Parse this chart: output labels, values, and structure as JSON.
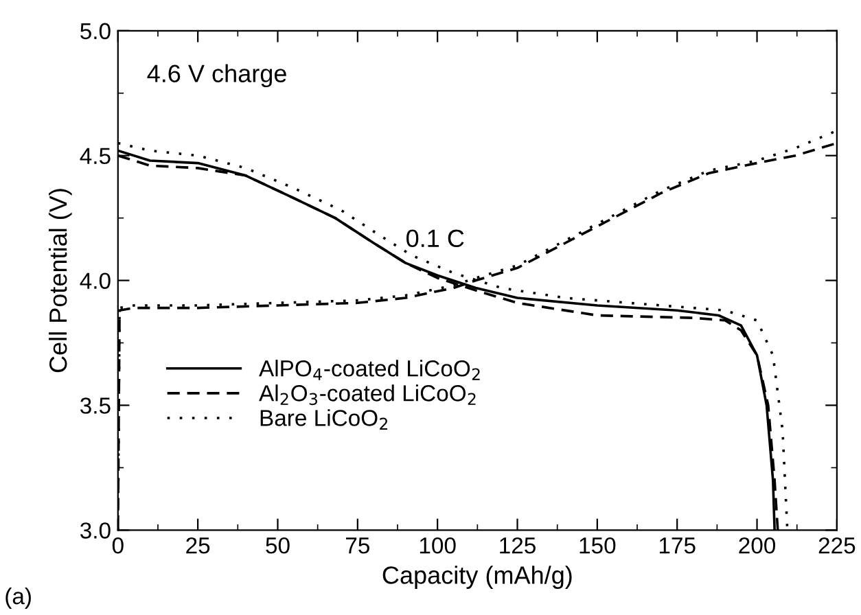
{
  "chart_data": {
    "type": "line",
    "xlabel": "Capacity (mAh/g)",
    "ylabel": "Cell Potential (V)",
    "xlim": [
      0,
      225
    ],
    "xticks": [
      0,
      25,
      50,
      75,
      100,
      125,
      150,
      175,
      200,
      225
    ],
    "ylim": [
      3.0,
      5.0
    ],
    "yticks": [
      {
        "value": 3.0,
        "label": "3.0"
      },
      {
        "value": 3.5,
        "label": "3.5"
      },
      {
        "value": 4.0,
        "label": "4.0"
      },
      {
        "value": 4.5,
        "label": "4.5"
      },
      {
        "value": 5.0,
        "label": "5.0"
      }
    ],
    "grid": false,
    "legend": "left",
    "marker": "none",
    "annotations": [
      "4.6 V charge",
      "0.1 C",
      "(a)"
    ],
    "series": [
      {
        "name": "AlPO$_{4}$-coated LiCoO$_{2}$",
        "color": "#000000",
        "line_style": "solid",
        "x": [
          0,
          10,
          25,
          40,
          55,
          68,
          80,
          90,
          100,
          112,
          125,
          150,
          175,
          188,
          195,
          200,
          203,
          205,
          205.5
        ],
        "values": [
          4.52,
          4.48,
          4.47,
          4.42,
          4.33,
          4.25,
          4.15,
          4.07,
          4.02,
          3.97,
          3.93,
          3.9,
          3.88,
          3.86,
          3.82,
          3.7,
          3.5,
          3.2,
          3.0
        ]
      },
      {
        "name": "Al$_{2}$O$_{3}$-coated LiCoO$_{2}$",
        "color": "#000000",
        "line_style": "dashed",
        "x": [
          0,
          10,
          25,
          40,
          55,
          68,
          80,
          90,
          100,
          112,
          125,
          150,
          180,
          190,
          195,
          200,
          203.5,
          205.5,
          206.5
        ],
        "values": [
          4.5,
          4.46,
          4.45,
          4.42,
          4.33,
          4.25,
          4.15,
          4.07,
          4.01,
          3.96,
          3.91,
          3.86,
          3.85,
          3.84,
          3.8,
          3.7,
          3.5,
          3.2,
          3.0
        ]
      },
      {
        "name": "Bare LiCoO$_{2}$",
        "color": "#000000",
        "line_style": "dotted",
        "x": [
          0,
          10,
          25,
          40,
          55,
          70,
          82,
          92,
          105,
          120,
          140,
          170,
          190,
          200,
          205,
          208,
          209.5
        ],
        "values": [
          4.55,
          4.52,
          4.5,
          4.45,
          4.37,
          4.28,
          4.18,
          4.1,
          4.03,
          3.97,
          3.93,
          3.9,
          3.88,
          3.84,
          3.7,
          3.4,
          3.0
        ]
      },
      {
        "color": "#000000",
        "line_style": "dashed",
        "x": [
          0,
          0.5,
          5,
          25,
          50,
          75,
          90,
          105,
          112,
          125,
          140,
          155,
          170,
          185,
          200,
          212,
          225
        ],
        "values": [
          3.0,
          3.88,
          3.89,
          3.89,
          3.9,
          3.91,
          3.93,
          3.97,
          4.0,
          4.05,
          4.15,
          4.25,
          4.35,
          4.43,
          4.47,
          4.5,
          4.55
        ]
      },
      {
        "color": "#000000",
        "line_style": "dotted",
        "x": [
          0,
          0.5,
          5,
          25,
          50,
          75,
          90,
          105,
          112,
          125,
          140,
          155,
          170,
          185,
          200,
          212,
          225
        ],
        "values": [
          3.0,
          3.89,
          3.9,
          3.9,
          3.91,
          3.92,
          3.94,
          3.98,
          4.01,
          4.06,
          4.16,
          4.26,
          4.36,
          4.44,
          4.48,
          4.53,
          4.6
        ]
      }
    ]
  }
}
